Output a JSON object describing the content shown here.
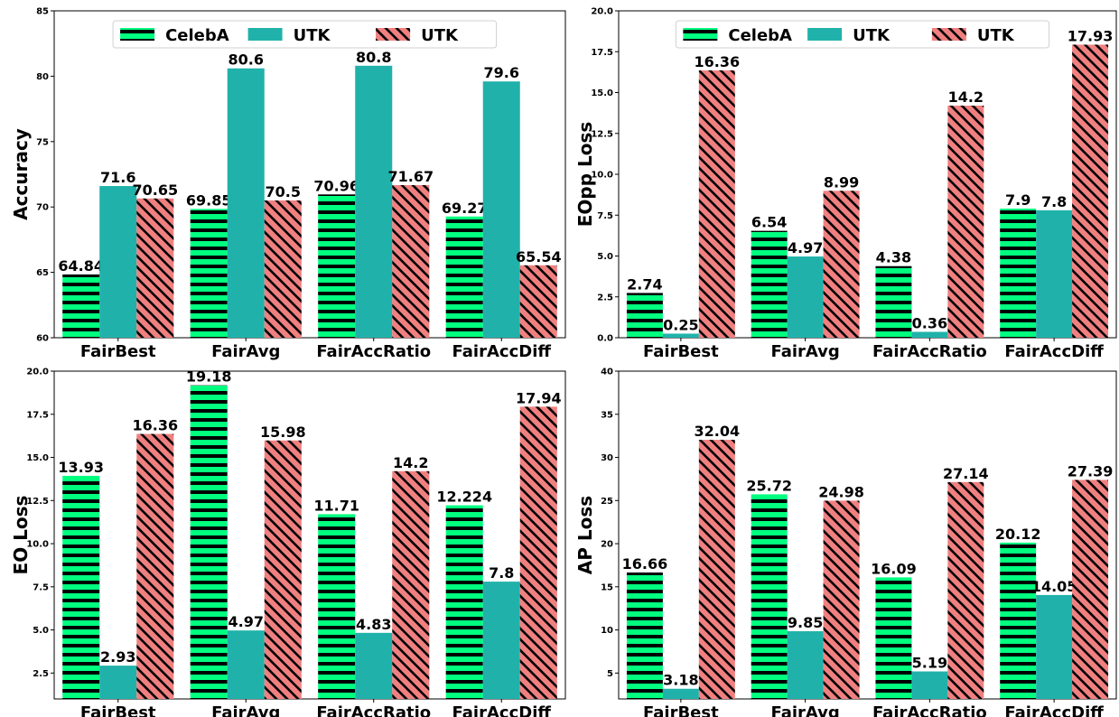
{
  "chart_data": [
    {
      "type": "bar",
      "categories": [
        "FairBest",
        "FairAvg",
        "FairAccRatio",
        "FairAccDiff"
      ],
      "ylabel": "Accuracy",
      "ylim": [
        60,
        85
      ],
      "yticks": [
        "60",
        "65",
        "70",
        "75",
        "80",
        "85"
      ],
      "tick_values": [
        60,
        65,
        70,
        75,
        80,
        85
      ],
      "series": [
        {
          "name": "CelebA",
          "values": [
            64.84,
            69.85,
            70.96,
            69.27
          ],
          "labels": [
            "64.84",
            "69.85",
            "70.96",
            "69.27"
          ]
        },
        {
          "name": "UTK",
          "values": [
            71.6,
            80.6,
            80.8,
            79.6
          ],
          "labels": [
            "71.6",
            "80.6",
            "80.8",
            "79.6"
          ]
        },
        {
          "name": "UTK",
          "values": [
            70.65,
            70.5,
            71.67,
            65.54
          ],
          "labels": [
            "70.65",
            "70.5",
            "71.67",
            "65.54"
          ]
        }
      ],
      "legend": "top-center"
    },
    {
      "type": "bar",
      "categories": [
        "FairBest",
        "FairAvg",
        "FairAccRatio",
        "FairAccDiff"
      ],
      "ylabel": "EOpp Loss",
      "ylim": [
        0,
        20
      ],
      "yticks": [
        "0.0",
        "2.5",
        "5.0",
        "7.5",
        "10.0",
        "12.5",
        "15.0",
        "17.5",
        "20.0"
      ],
      "tick_values": [
        0,
        2.5,
        5,
        7.5,
        10,
        12.5,
        15,
        17.5,
        20
      ],
      "series": [
        {
          "name": "CelebA",
          "values": [
            2.74,
            6.54,
            4.38,
            7.9
          ],
          "labels": [
            "2.74",
            "6.54",
            "4.38",
            "7.9"
          ]
        },
        {
          "name": "UTK",
          "values": [
            0.25,
            4.97,
            0.36,
            7.8
          ],
          "labels": [
            "0.25",
            "4.97",
            "0.36",
            "7.8"
          ]
        },
        {
          "name": "UTK",
          "values": [
            16.36,
            8.99,
            14.2,
            17.93
          ],
          "labels": [
            "16.36",
            "8.99",
            "14.2",
            "17.93"
          ]
        }
      ],
      "legend": "top-center"
    },
    {
      "type": "bar",
      "categories": [
        "FairBest",
        "FairAvg",
        "FairAccRatio",
        "FairAccDiff"
      ],
      "ylabel": "EO Loss",
      "ylim": [
        1,
        20
      ],
      "yticks": [
        "2.5",
        "5.0",
        "7.5",
        "10.0",
        "12.5",
        "15.0",
        "17.5",
        "20.0"
      ],
      "tick_values": [
        2.5,
        5,
        7.5,
        10,
        12.5,
        15,
        17.5,
        20
      ],
      "series": [
        {
          "name": "CelebA",
          "values": [
            13.93,
            19.18,
            11.71,
            12.224
          ],
          "labels": [
            "13.93",
            "19.18",
            "11.71",
            "12.224"
          ]
        },
        {
          "name": "UTK",
          "values": [
            2.93,
            4.97,
            4.83,
            7.8
          ],
          "labels": [
            "2.93",
            "4.97",
            "4.83",
            "7.8"
          ]
        },
        {
          "name": "UTK",
          "values": [
            16.36,
            15.98,
            14.2,
            17.94
          ],
          "labels": [
            "16.36",
            "15.98",
            "14.2",
            "17.94"
          ]
        }
      ]
    },
    {
      "type": "bar",
      "categories": [
        "FairBest",
        "FairAvg",
        "FairAccRatio",
        "FairAccDiff"
      ],
      "ylabel": "AP Loss",
      "ylim": [
        2,
        40
      ],
      "yticks": [
        "5",
        "10",
        "15",
        "20",
        "25",
        "30",
        "35",
        "40"
      ],
      "tick_values": [
        5,
        10,
        15,
        20,
        25,
        30,
        35,
        40
      ],
      "series": [
        {
          "name": "CelebA",
          "values": [
            16.66,
            25.72,
            16.09,
            20.12
          ],
          "labels": [
            "16.66",
            "25.72",
            "16.09",
            "20.12"
          ]
        },
        {
          "name": "UTK",
          "values": [
            3.18,
            9.85,
            5.19,
            14.05
          ],
          "labels": [
            "3.18",
            "9.85",
            "5.19",
            "14.05"
          ]
        },
        {
          "name": "UTK",
          "values": [
            32.04,
            24.98,
            27.14,
            27.39
          ],
          "labels": [
            "32.04",
            "24.98",
            "27.14",
            "27.39"
          ]
        }
      ]
    }
  ],
  "colors": {
    "celeba_fill": "#00ff7f",
    "celeba_hatch": "#000000",
    "utk_fill": "#20b2aa",
    "utk2_fill": "#f08080",
    "utk2_hatch": "#000000"
  }
}
